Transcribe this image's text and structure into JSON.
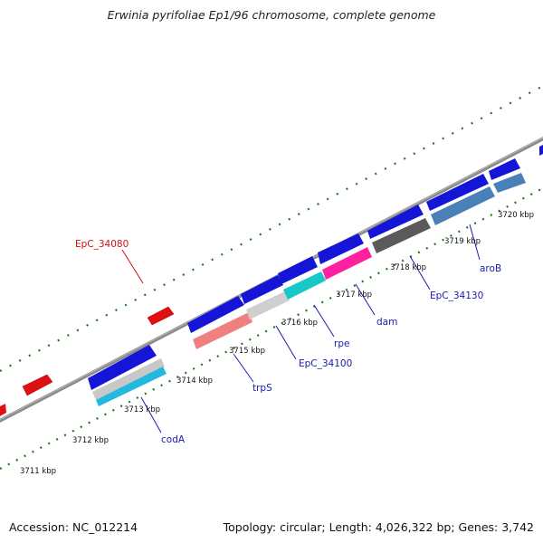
{
  "title": "Erwinia pyrifoliae Ep1/96 chromosome, complete genome",
  "footer": {
    "accession": "Accession: NC_012214",
    "summary": "Topology: circular; Length: 4,026,322 bp; Genes: 3,742"
  },
  "colors": {
    "backbone": "#8a8a8a",
    "ticks": "#1a7a1a",
    "gene_forward": "#1515d8",
    "gene_red": "#e01010",
    "label_blue": "#1a1ab0",
    "label_red": "#cc1010"
  },
  "ruler": {
    "unit": "kbp",
    "labels": [
      "3711 kbp",
      "3712 kbp",
      "3713 kbp",
      "3714 kbp",
      "3715 kbp",
      "3716 kbp",
      "3717 kbp",
      "3718 kbp",
      "3719 kbp",
      "3720 kbp"
    ]
  },
  "gene_labels": [
    "codA",
    "trpS",
    "EpC_34100",
    "rpe",
    "dam",
    "EpC_34130",
    "aroB",
    "EpC_34080"
  ],
  "features": {
    "blue_genes": 11,
    "red_genes": 3,
    "colored_bars": [
      "#c8c8c8",
      "#22b8e0",
      "#f08080",
      "#cfcfcf",
      "#18c8c8",
      "#ff20a0",
      "#5a5a5a",
      "#4a80b8",
      "#4a80b8"
    ]
  }
}
